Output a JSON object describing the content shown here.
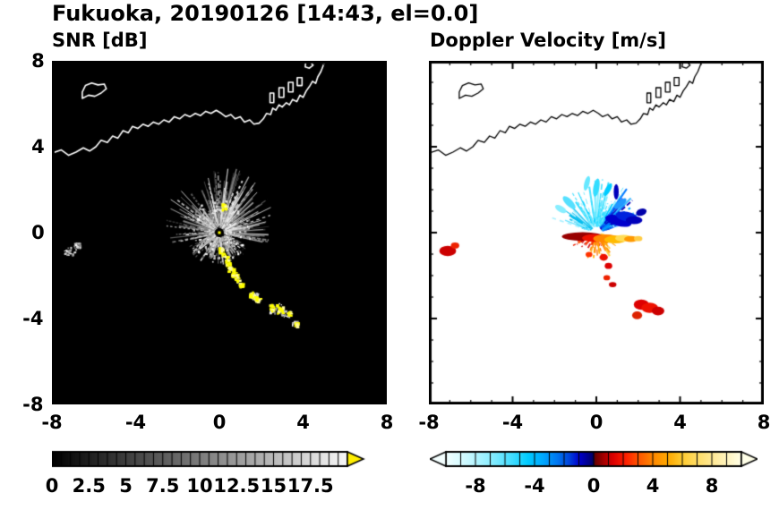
{
  "title": "Fukuoka, 20190126 [14:43, el=0.0]",
  "panels": {
    "snr": {
      "subtitle": "SNR [dB]",
      "bg": "#000000",
      "coast_color": "#ffffff"
    },
    "vel": {
      "subtitle": "Doppler Velocity [m/s]",
      "bg": "#ffffff",
      "coast_color": "#000000"
    }
  },
  "axes": {
    "xlim": [
      -8,
      8
    ],
    "ylim": [
      -8,
      8
    ],
    "major_ticks": [
      -8,
      -4,
      0,
      4,
      8
    ],
    "minor_step": 1,
    "x_tick_labels": [
      "-8",
      "-4",
      "0",
      "4",
      "8"
    ],
    "y_tick_labels": [
      "-8",
      "-4",
      "0",
      "4",
      "8"
    ]
  },
  "colorbars": {
    "snr": {
      "min": 0,
      "max": 20,
      "tick_step": 0.625,
      "labels": [
        "0",
        "2.5",
        "5",
        "7.5",
        "10",
        "12.5",
        "15",
        "17.5"
      ],
      "label_values": [
        0,
        2.5,
        5,
        7.5,
        10,
        12.5,
        15,
        17.5
      ],
      "gradient": [
        [
          0,
          "#000000"
        ],
        [
          20,
          "#f8f8f8"
        ]
      ],
      "over_arrow_color": "#ffee00"
    },
    "vel": {
      "min": -10,
      "max": 10,
      "tick_step": 1,
      "labels": [
        "-8",
        "-4",
        "0",
        "4",
        "8"
      ],
      "label_values": [
        -8,
        -4,
        0,
        4,
        8
      ],
      "gradient": [
        [
          -10,
          "#f2ffff"
        ],
        [
          -8.5,
          "#c8f8ff"
        ],
        [
          -7,
          "#8ceeff"
        ],
        [
          -5.5,
          "#3fdcff"
        ],
        [
          -4.5,
          "#00ccff"
        ],
        [
          -3.5,
          "#00aaff"
        ],
        [
          -2.5,
          "#0078f0"
        ],
        [
          -1.7,
          "#0044dd"
        ],
        [
          -1,
          "#0000cc"
        ],
        [
          -0.05,
          "#000066"
        ],
        [
          0.05,
          "#660000"
        ],
        [
          0.7,
          "#aa0000"
        ],
        [
          1.3,
          "#dd0000"
        ],
        [
          2.2,
          "#ff2200"
        ],
        [
          3,
          "#ff5500"
        ],
        [
          4,
          "#ff8800"
        ],
        [
          5,
          "#ffaa00"
        ],
        [
          6,
          "#ffcc33"
        ],
        [
          7,
          "#ffdd66"
        ],
        [
          8.5,
          "#ffeeaa"
        ],
        [
          10,
          "#ffffe8"
        ]
      ],
      "under_arrow_color": "#f4ffff",
      "over_arrow_color": "#ffffe8"
    }
  },
  "render": {
    "coastline": {
      "mainline": [
        [
          -8,
          3.7
        ],
        [
          -7.55,
          3.85
        ],
        [
          -7.2,
          3.6
        ],
        [
          -6.85,
          3.75
        ],
        [
          -6.5,
          3.95
        ],
        [
          -6.2,
          3.8
        ],
        [
          -5.9,
          4
        ],
        [
          -5.65,
          4.3
        ],
        [
          -5.35,
          4.2
        ],
        [
          -5.1,
          4.5
        ],
        [
          -4.85,
          4.4
        ],
        [
          -4.6,
          4.75
        ],
        [
          -4.35,
          4.65
        ],
        [
          -4.15,
          4.95
        ],
        [
          -3.9,
          4.85
        ],
        [
          -3.65,
          5.05
        ],
        [
          -3.4,
          4.95
        ],
        [
          -3.15,
          5.15
        ],
        [
          -2.9,
          5.05
        ],
        [
          -2.65,
          5.25
        ],
        [
          -2.4,
          5.15
        ],
        [
          -2.15,
          5.4
        ],
        [
          -1.9,
          5.3
        ],
        [
          -1.65,
          5.5
        ],
        [
          -1.4,
          5.4
        ],
        [
          -1.15,
          5.55
        ],
        [
          -0.9,
          5.45
        ],
        [
          -0.65,
          5.65
        ],
        [
          -0.4,
          5.55
        ],
        [
          -0.15,
          5.7
        ],
        [
          0.1,
          5.55
        ],
        [
          0.3,
          5.4
        ],
        [
          0.55,
          5.5
        ],
        [
          0.75,
          5.3
        ],
        [
          1,
          5.4
        ],
        [
          1.2,
          5.15
        ],
        [
          1.45,
          5.25
        ],
        [
          1.65,
          5.05
        ],
        [
          1.9,
          5.1
        ],
        [
          2.1,
          5.3
        ],
        [
          2.25,
          5.55
        ],
        [
          2.45,
          5.5
        ],
        [
          2.55,
          5.8
        ],
        [
          2.7,
          5.7
        ],
        [
          2.85,
          5.95
        ],
        [
          3,
          5.85
        ],
        [
          3.2,
          6.05
        ],
        [
          3.35,
          5.95
        ],
        [
          3.5,
          6.2
        ],
        [
          3.7,
          6.1
        ],
        [
          3.85,
          6.4
        ],
        [
          4,
          6.3
        ],
        [
          4.15,
          6.6
        ],
        [
          4.3,
          6.8
        ],
        [
          4.45,
          7.05
        ],
        [
          4.6,
          6.95
        ],
        [
          4.7,
          7.25
        ],
        [
          4.85,
          7.5
        ],
        [
          4.95,
          7.75
        ],
        [
          5.05,
          8
        ]
      ],
      "islands": [
        [
          [
            -6.55,
            6.25
          ],
          [
            -6.25,
            6.4
          ],
          [
            -5.95,
            6.35
          ],
          [
            -5.65,
            6.5
          ],
          [
            -5.4,
            6.7
          ],
          [
            -5.5,
            6.92
          ],
          [
            -5.8,
            6.88
          ],
          [
            -6.1,
            6.97
          ],
          [
            -6.4,
            6.85
          ],
          [
            -6.55,
            6.55
          ]
        ],
        [
          [
            4.1,
            7.72
          ],
          [
            4.3,
            7.66
          ],
          [
            4.48,
            7.8
          ],
          [
            4.33,
            7.95
          ],
          [
            4.12,
            7.9
          ]
        ]
      ],
      "structures": [
        [
          [
            2.42,
            6.05
          ],
          [
            2.42,
            6.5
          ],
          [
            2.6,
            6.5
          ],
          [
            2.6,
            6.05
          ]
        ],
        [
          [
            2.85,
            6.3
          ],
          [
            2.85,
            6.75
          ],
          [
            3.08,
            6.75
          ],
          [
            3.08,
            6.3
          ]
        ],
        [
          [
            3.3,
            6.55
          ],
          [
            3.3,
            7
          ],
          [
            3.52,
            7
          ],
          [
            3.52,
            6.55
          ]
        ],
        [
          [
            3.72,
            6.85
          ],
          [
            3.72,
            7.22
          ],
          [
            3.95,
            7.22
          ],
          [
            3.95,
            6.85
          ]
        ]
      ]
    },
    "snr": {
      "seed": 20190126,
      "streaks": 430,
      "bright_spokes": 14,
      "core_dots": 160,
      "yellow_blobs": [
        [
          0.2,
          1.25,
          0.12
        ],
        [
          0.05,
          -0.78,
          0.1
        ],
        [
          0.22,
          -1.05,
          0.13
        ],
        [
          0.38,
          -1.35,
          0.12
        ],
        [
          0.52,
          -1.62,
          0.15
        ],
        [
          0.68,
          -1.9,
          0.13
        ],
        [
          0.82,
          -2.15,
          0.12
        ],
        [
          1,
          -2.4,
          0.1
        ],
        [
          1.5,
          -2.85,
          0.12
        ],
        [
          1.78,
          -3.05,
          0.13
        ],
        [
          2.55,
          -3.45,
          0.17
        ],
        [
          2.92,
          -3.6,
          0.18
        ],
        [
          3.3,
          -3.75,
          0.1
        ],
        [
          3.65,
          -4.25,
          0.08
        ]
      ],
      "gray_patches": [
        [
          -7.15,
          -0.85,
          0.28
        ],
        [
          -6.8,
          -0.55,
          0.16
        ],
        [
          2.7,
          -3.5,
          0.32
        ],
        [
          3.15,
          -3.72,
          0.24
        ],
        [
          1.62,
          -2.92,
          0.2
        ],
        [
          3.6,
          -4.2,
          0.14
        ]
      ]
    },
    "vel": {
      "seed": 1443,
      "cold_streaks": 160,
      "warm_streaks": 115,
      "blobs": [
        [
          1.05,
          0.55,
          0.32,
          0.12,
          -15,
          "#0000cc"
        ],
        [
          1.45,
          0.75,
          0.26,
          0.11,
          -10,
          "#0022dd"
        ],
        [
          1.8,
          0.58,
          0.2,
          0.09,
          0,
          "#0000bb"
        ],
        [
          2.15,
          0.95,
          0.13,
          0.08,
          20,
          "#0000aa"
        ],
        [
          1.15,
          1.35,
          0.18,
          0.07,
          40,
          "#2299ff"
        ],
        [
          0.95,
          1.9,
          0.06,
          0.18,
          0,
          "#0000bb"
        ],
        [
          0,
          2.1,
          0.22,
          0.07,
          80,
          "#33ddff"
        ],
        [
          -0.45,
          2.3,
          0.18,
          0.06,
          75,
          "#66e8ff"
        ],
        [
          0.55,
          2,
          0.17,
          0.06,
          60,
          "#00ccff"
        ],
        [
          -1.3,
          1.4,
          0.2,
          0.08,
          135,
          "#55e0ff"
        ],
        [
          -1.7,
          1.1,
          0.15,
          0.07,
          150,
          "#88eeff"
        ],
        [
          -0.65,
          -0.18,
          0.5,
          0.1,
          0,
          "#990000"
        ],
        [
          -0.12,
          -0.25,
          0.28,
          0.09,
          0,
          "#ee1100"
        ],
        [
          0.45,
          -0.28,
          0.3,
          0.1,
          0,
          "#ff8800"
        ],
        [
          0.9,
          -0.32,
          0.26,
          0.09,
          0,
          "#ffbb00"
        ],
        [
          1.3,
          -0.26,
          0.2,
          0.08,
          0,
          "#ffdd55"
        ],
        [
          1.65,
          -0.3,
          0.16,
          0.07,
          0,
          "#ff9900"
        ],
        [
          2,
          -0.28,
          0.1,
          0.06,
          0,
          "#ffcc44"
        ],
        [
          0.35,
          -1.15,
          0.1,
          0.08,
          0,
          "#ee1100"
        ],
        [
          0.58,
          -1.55,
          0.09,
          0.07,
          0,
          "#dd0000"
        ],
        [
          0.5,
          -2.1,
          0.08,
          0.06,
          0,
          "#ee2200"
        ],
        [
          0.78,
          -2.42,
          0.09,
          0.06,
          0,
          "#cc0000"
        ],
        [
          -0.35,
          -1.02,
          0.08,
          0.06,
          0,
          "#ff3300"
        ],
        [
          2.15,
          -3.35,
          0.18,
          0.12,
          0,
          "#dd0000"
        ],
        [
          2.55,
          -3.5,
          0.2,
          0.12,
          0,
          "#ee1100"
        ],
        [
          2.95,
          -3.65,
          0.15,
          0.1,
          0,
          "#cc0000"
        ],
        [
          1.95,
          -3.85,
          0.12,
          0.09,
          0,
          "#dd2200"
        ],
        [
          -7.1,
          -0.85,
          0.2,
          0.12,
          0,
          "#cc0000"
        ],
        [
          -6.75,
          -0.6,
          0.1,
          0.07,
          0,
          "#ee2200"
        ]
      ]
    }
  },
  "chart_data": [
    {
      "type": "heatmap",
      "variant": "radar_ppi",
      "panel": "left",
      "title": "SNR [dB]",
      "station": "Fukuoka",
      "date": "20190126",
      "time": "14:43",
      "elevation_deg": 0.0,
      "xlim": [
        -8,
        8
      ],
      "ylim": [
        -8,
        8
      ],
      "x_ticks": [
        -8,
        -4,
        0,
        4,
        8
      ],
      "y_ticks": [
        -8,
        -4,
        0,
        4,
        8
      ],
      "grid": false,
      "background_color": "#000000",
      "coastline_color": "#ffffff",
      "colorbar": {
        "orientation": "horizontal",
        "tick_labels": [
          0,
          2.5,
          5,
          7.5,
          10,
          12.5,
          15,
          17.5
        ],
        "colormap": "black-to-white grayscale with yellow overflow arrow"
      },
      "features": [
        {
          "kind": "echo_fan",
          "center": [
            0,
            0
          ],
          "radius_max": 2.8,
          "sector": "all azimuths, densest north through east of radar",
          "value": "speckled 0-17.5 dB, brightest within radius 1.5"
        },
        {
          "kind": "high_snr_streak",
          "value": ">17.5 dB (yellow)",
          "path": [
            [
              0.1,
              -0.8
            ],
            [
              0.4,
              -1.4
            ],
            [
              0.7,
              -2.0
            ],
            [
              1.0,
              -2.4
            ],
            [
              1.6,
              -2.9
            ],
            [
              1.8,
              -3.1
            ]
          ]
        },
        {
          "kind": "high_snr_patch",
          "value": ">17.5 dB (yellow)",
          "center": [
            2.8,
            -3.6
          ]
        },
        {
          "kind": "high_snr_dot",
          "value": ">17.5 dB (yellow)",
          "center": [
            0.2,
            1.25
          ]
        },
        {
          "kind": "echo_patch",
          "center": [
            -7.0,
            -0.8
          ],
          "value": "5-15 dB"
        },
        {
          "kind": "echo_patch",
          "center": [
            3.6,
            -4.2
          ],
          "value": "5-12 dB"
        }
      ]
    },
    {
      "type": "heatmap",
      "variant": "radar_ppi",
      "panel": "right",
      "title": "Doppler Velocity [m/s]",
      "station": "Fukuoka",
      "date": "20190126",
      "time": "14:43",
      "elevation_deg": 0.0,
      "xlim": [
        -8,
        8
      ],
      "ylim": [
        -8,
        8
      ],
      "x_ticks": [
        -8,
        -4,
        0,
        4,
        8
      ],
      "y_ticks": [
        -8,
        -4,
        0,
        4,
        8
      ],
      "grid": false,
      "background_color": "#ffffff",
      "coastline_color": "#000000",
      "colorbar": {
        "orientation": "horizontal",
        "tick_labels": [
          -8,
          -4,
          0,
          4,
          8
        ],
        "colormap": "white/cyan/blue/dark-blue negative, dark-red/red/orange/yellow/white positive, overflow arrows both ends"
      },
      "features": [
        {
          "kind": "velocity_fan",
          "sector": "north of radar",
          "radius_max": 2.3,
          "value_mps": "-1 to -9 (cyan to dark blue)"
        },
        {
          "kind": "velocity_fan",
          "sector": "south of radar",
          "radius_max": 1.3,
          "value_mps": "+1 to +7 (red to yellow)"
        },
        {
          "kind": "velocity_bar",
          "center": [
            -0.6,
            -0.2
          ],
          "value_mps": "+9 to +10 (dark red)"
        },
        {
          "kind": "velocity_patch",
          "center": [
            2.5,
            -3.5
          ],
          "value_mps": "+4 to +8 (red)"
        },
        {
          "kind": "velocity_patch",
          "center": [
            -7.0,
            -0.8
          ],
          "value_mps": "+4 (red)"
        },
        {
          "kind": "velocity_dots",
          "path": [
            [
              0.35,
              -1.15
            ],
            [
              0.55,
              -1.55
            ],
            [
              0.5,
              -2.1
            ],
            [
              0.8,
              -2.4
            ]
          ],
          "value_mps": "+3 to +6 (red)"
        }
      ]
    }
  ]
}
